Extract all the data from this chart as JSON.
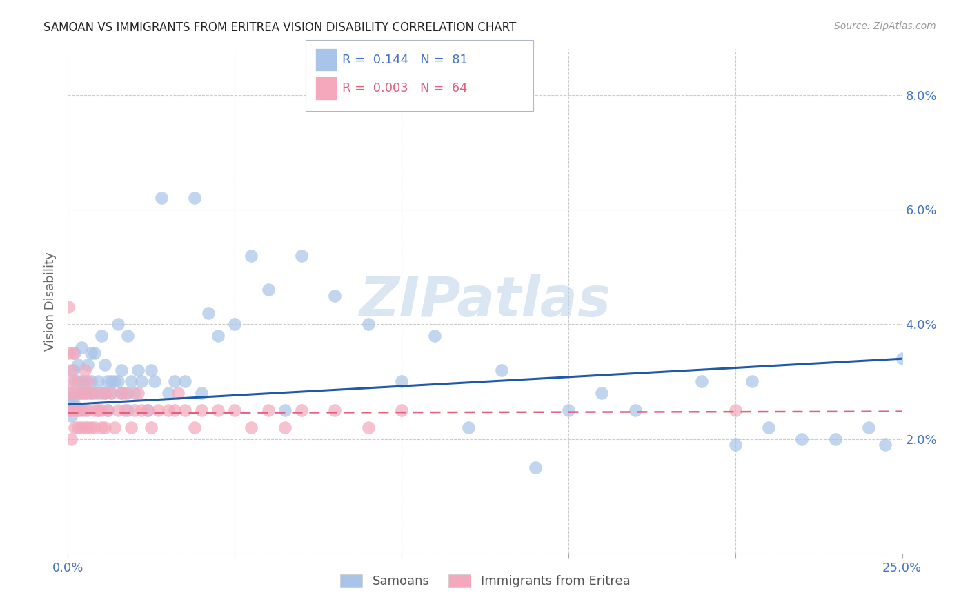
{
  "title": "SAMOAN VS IMMIGRANTS FROM ERITREA VISION DISABILITY CORRELATION CHART",
  "source": "Source: ZipAtlas.com",
  "ylabel": "Vision Disability",
  "xlim": [
    0.0,
    0.25
  ],
  "ylim": [
    0.0,
    0.088
  ],
  "xtick_vals": [
    0.0,
    0.05,
    0.1,
    0.15,
    0.2,
    0.25
  ],
  "ytick_vals": [
    0.0,
    0.02,
    0.04,
    0.06,
    0.08
  ],
  "xticklabels": [
    "0.0%",
    "",
    "",
    "",
    "",
    "25.0%"
  ],
  "yticklabels_right": [
    "",
    "2.0%",
    "4.0%",
    "6.0%",
    "8.0%"
  ],
  "legend1_label": "Samoans",
  "legend2_label": "Immigrants from Eritrea",
  "series1_color": "#a8c4e8",
  "series2_color": "#f5a8bc",
  "trendline1_color": "#1f5aa8",
  "trendline2_color": "#e06080",
  "R1": 0.144,
  "N1": 81,
  "R2": 0.003,
  "N2": 64,
  "watermark": "ZIPatlas",
  "background_color": "#ffffff",
  "grid_color": "#cccccc",
  "axis_label_color": "#4472c4",
  "title_color": "#222222",
  "trendline1_start_y": 0.026,
  "trendline1_end_y": 0.034,
  "trendline2_start_y": 0.0245,
  "trendline2_end_y": 0.0248,
  "samoans_x": [
    0.0005,
    0.001,
    0.001,
    0.0015,
    0.0015,
    0.002,
    0.002,
    0.002,
    0.003,
    0.003,
    0.003,
    0.004,
    0.004,
    0.004,
    0.005,
    0.005,
    0.005,
    0.006,
    0.006,
    0.007,
    0.007,
    0.007,
    0.008,
    0.008,
    0.009,
    0.009,
    0.01,
    0.01,
    0.011,
    0.011,
    0.012,
    0.012,
    0.013,
    0.013,
    0.014,
    0.015,
    0.015,
    0.016,
    0.016,
    0.017,
    0.018,
    0.018,
    0.019,
    0.02,
    0.021,
    0.022,
    0.024,
    0.025,
    0.026,
    0.028,
    0.03,
    0.032,
    0.035,
    0.038,
    0.04,
    0.042,
    0.045,
    0.05,
    0.055,
    0.06,
    0.065,
    0.07,
    0.08,
    0.09,
    0.1,
    0.11,
    0.12,
    0.13,
    0.14,
    0.15,
    0.16,
    0.17,
    0.19,
    0.2,
    0.205,
    0.21,
    0.22,
    0.23,
    0.24,
    0.245,
    0.25
  ],
  "samoans_y": [
    0.026,
    0.028,
    0.024,
    0.027,
    0.032,
    0.026,
    0.03,
    0.035,
    0.028,
    0.025,
    0.033,
    0.03,
    0.028,
    0.036,
    0.025,
    0.03,
    0.028,
    0.033,
    0.028,
    0.035,
    0.03,
    0.028,
    0.035,
    0.028,
    0.025,
    0.03,
    0.038,
    0.028,
    0.033,
    0.028,
    0.03,
    0.025,
    0.03,
    0.028,
    0.03,
    0.04,
    0.03,
    0.032,
    0.028,
    0.028,
    0.025,
    0.038,
    0.03,
    0.028,
    0.032,
    0.03,
    0.025,
    0.032,
    0.03,
    0.062,
    0.028,
    0.03,
    0.03,
    0.062,
    0.028,
    0.042,
    0.038,
    0.04,
    0.052,
    0.046,
    0.025,
    0.052,
    0.045,
    0.04,
    0.03,
    0.038,
    0.022,
    0.032,
    0.015,
    0.025,
    0.028,
    0.025,
    0.03,
    0.019,
    0.03,
    0.022,
    0.02,
    0.02,
    0.022,
    0.019,
    0.034
  ],
  "eritrea_x": [
    0.0002,
    0.0003,
    0.0004,
    0.0005,
    0.0008,
    0.001,
    0.001,
    0.001,
    0.0015,
    0.002,
    0.002,
    0.002,
    0.003,
    0.003,
    0.003,
    0.004,
    0.004,
    0.004,
    0.005,
    0.005,
    0.005,
    0.006,
    0.006,
    0.006,
    0.007,
    0.007,
    0.008,
    0.008,
    0.009,
    0.009,
    0.01,
    0.01,
    0.011,
    0.011,
    0.012,
    0.013,
    0.014,
    0.015,
    0.016,
    0.017,
    0.018,
    0.019,
    0.02,
    0.021,
    0.022,
    0.024,
    0.025,
    0.027,
    0.03,
    0.032,
    0.033,
    0.035,
    0.038,
    0.04,
    0.045,
    0.05,
    0.055,
    0.06,
    0.065,
    0.07,
    0.08,
    0.09,
    0.1,
    0.2
  ],
  "eritrea_y": [
    0.043,
    0.035,
    0.028,
    0.025,
    0.03,
    0.032,
    0.025,
    0.02,
    0.035,
    0.028,
    0.025,
    0.022,
    0.03,
    0.025,
    0.022,
    0.028,
    0.025,
    0.022,
    0.032,
    0.028,
    0.022,
    0.03,
    0.025,
    0.022,
    0.028,
    0.022,
    0.025,
    0.022,
    0.028,
    0.025,
    0.025,
    0.022,
    0.028,
    0.022,
    0.025,
    0.028,
    0.022,
    0.025,
    0.028,
    0.025,
    0.028,
    0.022,
    0.025,
    0.028,
    0.025,
    0.025,
    0.022,
    0.025,
    0.025,
    0.025,
    0.028,
    0.025,
    0.022,
    0.025,
    0.025,
    0.025,
    0.022,
    0.025,
    0.022,
    0.025,
    0.025,
    0.022,
    0.025,
    0.025
  ]
}
